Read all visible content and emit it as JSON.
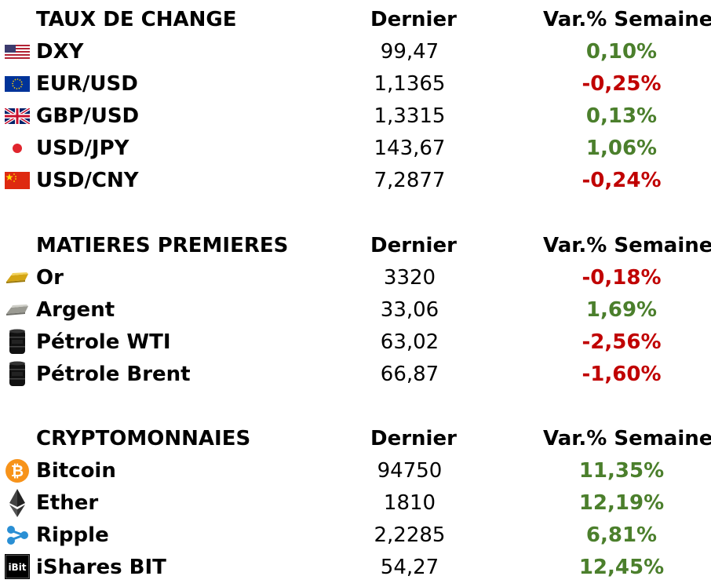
{
  "colors": {
    "positive": "#4b7f2c",
    "negative": "#c00000"
  },
  "sections": [
    {
      "title": "TAUX DE CHANGE",
      "col_last": "Dernier",
      "col_var": "Var.% Semaine",
      "rows": [
        {
          "icon": "us-flag-icon",
          "name": "DXY",
          "last": "99,47",
          "var": "0,10%",
          "dir": "pos"
        },
        {
          "icon": "eu-flag-icon",
          "name": "EUR/USD",
          "last": "1,1365",
          "var": "-0,25%",
          "dir": "neg"
        },
        {
          "icon": "uk-flag-icon",
          "name": "GBP/USD",
          "last": "1,3315",
          "var": "0,13%",
          "dir": "pos"
        },
        {
          "icon": "japan-flag-icon",
          "name": "USD/JPY",
          "last": "143,67",
          "var": "1,06%",
          "dir": "pos"
        },
        {
          "icon": "china-flag-icon",
          "name": "USD/CNY",
          "last": "7,2877",
          "var": "-0,24%",
          "dir": "neg"
        }
      ]
    },
    {
      "title": "MATIERES PREMIERES",
      "col_last": "Dernier",
      "col_var": "Var.% Semaine",
      "rows": [
        {
          "icon": "gold-bar-icon",
          "name": "Or",
          "last": "3320",
          "var": "-0,18%",
          "dir": "neg"
        },
        {
          "icon": "silver-bar-icon",
          "name": "Argent",
          "last": "33,06",
          "var": "1,69%",
          "dir": "pos"
        },
        {
          "icon": "oil-barrel-icon",
          "name": "Pétrole WTI",
          "last": "63,02",
          "var": "-2,56%",
          "dir": "neg"
        },
        {
          "icon": "oil-barrel-icon",
          "name": "Pétrole Brent",
          "last": "66,87",
          "var": "-1,60%",
          "dir": "neg"
        }
      ]
    },
    {
      "title": "CRYPTOMONNAIES",
      "col_last": "Dernier",
      "col_var": "Var.% Semaine",
      "rows": [
        {
          "icon": "bitcoin-icon",
          "name": "Bitcoin",
          "last": "94750",
          "var": "11,35%",
          "dir": "pos"
        },
        {
          "icon": "ethereum-icon",
          "name": "Ether",
          "last": "1810",
          "var": "12,19%",
          "dir": "pos"
        },
        {
          "icon": "ripple-icon",
          "name": "Ripple",
          "last": "2,2285",
          "var": "6,81%",
          "dir": "pos"
        },
        {
          "icon": "ishares-bit-icon",
          "name": "iShares BIT",
          "last": "54,27",
          "var": "12,45%",
          "dir": "pos"
        }
      ],
      "ibit_logo_text": "iBit"
    }
  ]
}
